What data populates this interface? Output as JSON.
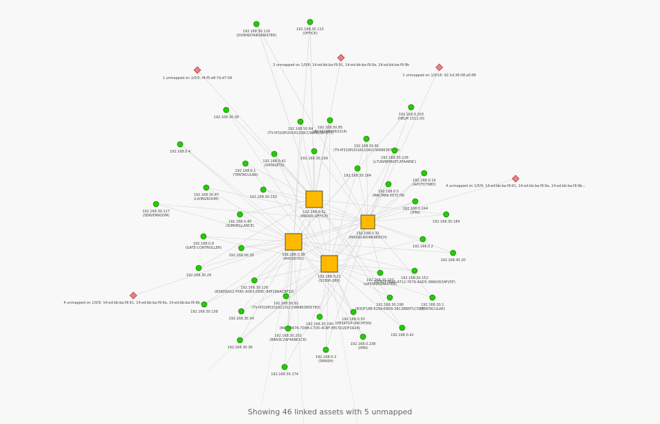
{
  "summary": "Showing 46 linked assets with 5 unmapped",
  "colors": {
    "switch": "#ffba00",
    "device": "#1fd000",
    "unmapped": "#ef7f7f",
    "edge": "#d2d2d2",
    "background": "#f8f8f8"
  },
  "switches": [
    {
      "id": "s1",
      "ip": "192.168.0.31",
      "name": "(M4300-OFFICE)"
    },
    {
      "id": "s2",
      "ip": "192.168.0.32",
      "name": "(M4300-WORKBENCH)"
    },
    {
      "id": "s3",
      "ip": "192.168.0.30",
      "name": "(M4300-DC)"
    },
    {
      "id": "s4",
      "ip": "192.168.0.21",
      "name": "(S3300-28X)"
    }
  ],
  "devices": [
    {
      "ip": "192.168.30.116",
      "name": "(DOWNSTAIRSMASTER)"
    },
    {
      "ip": "192.168.30.115",
      "name": "(OFFICE)"
    },
    {
      "ip": "192.168.30.38",
      "name": ""
    },
    {
      "ip": "192.168.0.203",
      "name": "(HELM 1512.IO)"
    },
    {
      "ip": "192.168.50.84",
      "name": "(TV-IP310PI20181209CCWR8638?8?7)"
    },
    {
      "ip": "192.168.50.85",
      "name": "(BC0024B0063214)"
    },
    {
      "ip": "192.168.0.4",
      "name": ""
    },
    {
      "ip": "192.168.50.81",
      "name": "(TV-IP310PI20181106CCWR863870?9)"
    },
    {
      "ip": "192.168.0.41",
      "name": "(DATASETS)"
    },
    {
      "ip": "192.168.30.199",
      "name": ""
    },
    {
      "ip": "192.168.30.128",
      "name": "(L7UW9EPASFCATAA89C)"
    },
    {
      "ip": "192.168.0.1",
      "name": "(TENTACULAR)"
    },
    {
      "ip": "192.168.30.184",
      "name": ""
    },
    {
      "ip": "192.168.0.19",
      "name": "(APCFD798D)"
    },
    {
      "ip": "192.168.30.47",
      "name": "(LIVINGROOM)"
    },
    {
      "ip": "192.168.30.130",
      "name": ""
    },
    {
      "ip": "192.168.0.5",
      "name": "(MACMINI-EE7C78)"
    },
    {
      "ip": "192.168.30.117",
      "name": "(SERVERROOM)"
    },
    {
      "ip": "192.168.0.244",
      "name": "(IPMI)"
    },
    {
      "ip": "192.168.0.40",
      "name": "(SURVEILLANCE)"
    },
    {
      "ip": "192.168.30.189",
      "name": ""
    },
    {
      "ip": "192.168.0.8",
      "name": "(GATE-CONTROLLER)"
    },
    {
      "ip": "192.168.0.2",
      "name": ""
    },
    {
      "ip": "192.168.50.26",
      "name": ""
    },
    {
      "ip": "192.168.40.20",
      "name": ""
    },
    {
      "ip": "192.168.30.29",
      "name": ""
    },
    {
      "ip": "192.168.30.152",
      "name": "(DCB1F7BA6-4712-767D-6AD5-388A3534F25F)"
    },
    {
      "ip": "192.168.30.126",
      "name": "(B36D6A12-F06C-A363-DE8C-84F28AACBF53)"
    },
    {
      "ip": "192.168.30.103",
      "name": "(UPSTAIRSMASTER)"
    },
    {
      "ip": "192.168.50.82",
      "name": "(TV-IP310PI20181101CCWR863800783)"
    },
    {
      "ip": "192.168.30.198",
      "name": "(B3DF18B-E299-E8D9-28C2BB5F1C599)"
    },
    {
      "ip": "192.168.30.1",
      "name": "(TENTACULAR)"
    },
    {
      "ip": "192.168.30.138",
      "name": ""
    },
    {
      "ip": "192.168.30.34",
      "name": ""
    },
    {
      "ip": "192.168.30.190",
      "name": "(B4C8B676-7D88-C7D5-4CBF-EEC5D2DF2A24)"
    },
    {
      "ip": "192.168.0.50",
      "name": "(DESKTOP-O4CHFD9)"
    },
    {
      "ip": "192.168.0.42",
      "name": ""
    },
    {
      "ip": "192.168.30.202",
      "name": "(BRN3C2AF4ABE1C6)"
    },
    {
      "ip": "192.168.0.238",
      "name": "(IPMI)"
    },
    {
      "ip": "192.168.30.36",
      "name": ""
    },
    {
      "ip": "192.168.0.3",
      "name": "(SMASH)"
    },
    {
      "ip": "192.168.30.174",
      "name": ""
    }
  ],
  "unmapped": [
    {
      "label": "3 unmapped on 1/0/8: 14:ed:bb:ba:f9:91, 14:ed:bb:ba:f9:9a, 14:ed:bb:ba:f9:9b"
    },
    {
      "label": "1 unmapped on 1/0/5: f4:f5:e8:7d:d7:09"
    },
    {
      "label": "1 unmapped on 1/0/16: 92:1d:36:08:a0:86"
    },
    {
      "label": "4 unmapped on 1/0/9: 14:ed:bb:ba:f9:91, 14:ed:bb:ba:f9:9a, 14:ed:bb:ba:f9:9b..."
    },
    {
      "label": "4 unmapped on 1/0/9: 14:ed:bb:ba:f9:91, 14:ed:bb:ba:f9:9a, 14:ed:bb:ba:f9:9b..."
    }
  ]
}
